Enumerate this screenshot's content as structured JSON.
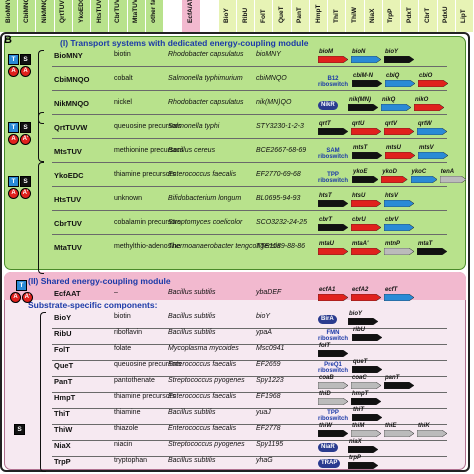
{
  "header_columns": [
    {
      "label": "BioMNY",
      "color": "#b8e28c"
    },
    {
      "label": "CbiMNQO",
      "color": "#b8e28c"
    },
    {
      "label": "NikMNQO",
      "color": "#b8e28c"
    },
    {
      "label": "QrtTUVW",
      "color": "#b8e28c"
    },
    {
      "label": "YkoEDC",
      "color": "#b8e28c"
    },
    {
      "label": "HtsTUV",
      "color": "#b8e28c"
    },
    {
      "label": "CbrTUV",
      "color": "#b8e28c"
    },
    {
      "label": "MtaTUV",
      "color": "#b8e28c"
    },
    {
      "label": "other families",
      "color": "#b8e28c"
    },
    {
      "label": "",
      "color": "#ffffff"
    },
    {
      "label": "EcfA/AT",
      "color": "#f2b9cf"
    },
    {
      "label": "",
      "color": "#ffffff"
    },
    {
      "label": "BioY",
      "color": "#e7f3b5"
    },
    {
      "label": "RibU",
      "color": "#e7f3b5"
    },
    {
      "label": "FolT",
      "color": "#e7f3b5"
    },
    {
      "label": "QueT",
      "color": "#e7f3b5"
    },
    {
      "label": "PanT",
      "color": "#e7f3b5"
    },
    {
      "label": "HmpT",
      "color": "#e7f3b5"
    },
    {
      "label": "ThiT",
      "color": "#e7f3b5"
    },
    {
      "label": "ThiW",
      "color": "#e7f3b5"
    },
    {
      "label": "NiaX",
      "color": "#e7f3b5"
    },
    {
      "label": "TrpP",
      "color": "#e7f3b5"
    },
    {
      "label": "PdxT",
      "color": "#e7f3b5"
    },
    {
      "label": "CbrT",
      "color": "#e7f3b5"
    },
    {
      "label": "PdxU",
      "color": "#e7f3b5"
    },
    {
      "label": "LipT",
      "color": "#e7f3b5"
    }
  ],
  "panel_label": "B",
  "section1_title": "(I) Transport systems with dedicated energy-coupling module",
  "section2_title": "(II) Shared energy-coupling module",
  "substrate_title": "Substrate-specific components:",
  "plus": "+",
  "colors": {
    "A": "#e0211d",
    "T": "#2a8ad6",
    "S": "#111111",
    "green": "#b8e28c",
    "pink": "#f2b9cf"
  },
  "module_letters": {
    "T": "T",
    "S": "S",
    "A": "A",
    "A2": "A'"
  },
  "section1_rows": [
    {
      "name": "BioMNY",
      "substrate": "biotin",
      "organism": "Rhodobacter capsulatus",
      "locus": "bioMNY",
      "genes": [
        {
          "label": "bioM",
          "color": "#e0211d"
        },
        {
          "label": "bioN",
          "color": "#2a8ad6"
        },
        {
          "label": "bioY",
          "color": "#111111"
        }
      ]
    },
    {
      "name": "CbiMNQO",
      "substrate": "cobalt",
      "organism": "Salmonella typhimurium",
      "locus": "cbiMNQO",
      "genes": [
        {
          "label": "cbiM-N",
          "color": "#111111"
        },
        {
          "label": "cbiQ",
          "color": "#2a8ad6"
        },
        {
          "label": "cbiO",
          "color": "#e0211d"
        }
      ],
      "riboswitch": "B12 riboswitch"
    },
    {
      "name": "NikMNQO",
      "substrate": "nickel",
      "organism": "Rhodobacter capsulatus",
      "locus": "nik(MN)QO",
      "genes": [
        {
          "label": "nik(MN)",
          "color": "#111111"
        },
        {
          "label": "nikQ",
          "color": "#2a8ad6"
        },
        {
          "label": "nikO",
          "color": "#e0211d"
        }
      ],
      "regulator": "NikR"
    },
    {
      "name": "QrtTUVW",
      "substrate": "queuosine precursors",
      "organism": "Salmonella typhi",
      "locus": "STY3230-1-2-3",
      "genes": [
        {
          "label": "qrtT",
          "color": "#111111"
        },
        {
          "label": "qrtU",
          "color": "#e0211d"
        },
        {
          "label": "qrtV",
          "color": "#e0211d"
        },
        {
          "label": "qrtW",
          "color": "#2a8ad6"
        }
      ]
    },
    {
      "name": "MtsTUV",
      "substrate": "methionine precursors",
      "organism": "Bacillus cereus",
      "locus": "BCE2667-68-69",
      "genes": [
        {
          "label": "mtsT",
          "color": "#111111"
        },
        {
          "label": "mtsU",
          "color": "#e0211d"
        },
        {
          "label": "mtsV",
          "color": "#2a8ad6"
        }
      ],
      "riboswitch": "SAM riboswitch"
    },
    {
      "name": "YkoEDC",
      "substrate": "thiamine precursors",
      "organism": "Enterococcus faecalis",
      "locus": "EF2770-69-68",
      "genes": [
        {
          "label": "ykoE",
          "color": "#111111"
        },
        {
          "label": "ykoD",
          "color": "#e0211d"
        },
        {
          "label": "ykoC",
          "color": "#2a8ad6"
        },
        {
          "label": "tenA",
          "color": "#bbbbbb"
        }
      ],
      "riboswitch": "TPP riboswitch"
    },
    {
      "name": "HtsTUV",
      "substrate": "unknown",
      "organism": "Bifidobacterium longum",
      "locus": "BL0695-94-93",
      "genes": [
        {
          "label": "htsT",
          "color": "#111111"
        },
        {
          "label": "htsU",
          "color": "#e0211d"
        },
        {
          "label": "htsV",
          "color": "#2a8ad6"
        }
      ]
    },
    {
      "name": "CbrTUV",
      "substrate": "cobalamin precursors",
      "organism": "Streptomyces coelicolor",
      "locus": "SCO3232-24-25",
      "genes": [
        {
          "label": "cbrT",
          "color": "#111111"
        },
        {
          "label": "cbrU",
          "color": "#e0211d"
        },
        {
          "label": "cbrV",
          "color": "#2a8ad6"
        }
      ]
    },
    {
      "name": "MtaTUV",
      "substrate": "methylthio-adenosine",
      "organism": "Thermoanaerobacter tengcongensis",
      "locus": "TTE1589-88-86",
      "genes": [
        {
          "label": "mtaU",
          "color": "#e0211d"
        },
        {
          "label": "mtaA'",
          "color": "#e0211d"
        },
        {
          "label": "mtnP",
          "color": "#bbbbbb"
        },
        {
          "label": "mtaT",
          "color": "#111111"
        }
      ]
    }
  ],
  "ecf_row": {
    "name": "EcfAAT",
    "substrate": "–",
    "organism": "Bacillus subtilis",
    "locus": "ybaDEF",
    "genes": [
      {
        "label": "ecfA1",
        "color": "#e0211d"
      },
      {
        "label": "ecfA2",
        "color": "#e0211d"
      },
      {
        "label": "ecfT",
        "color": "#2a8ad6"
      }
    ]
  },
  "section2_rows": [
    {
      "name": "BioY",
      "substrate": "biotin",
      "organism": "Bacillus subtilis",
      "locus": "bioY",
      "genes": [
        {
          "label": "bioY",
          "color": "#111111"
        }
      ],
      "regulator": "BirA"
    },
    {
      "name": "RibU",
      "substrate": "riboflavin",
      "organism": "Bacillus subtilis",
      "locus": "ypaA",
      "genes": [
        {
          "label": "ribU",
          "color": "#111111"
        }
      ],
      "riboswitch": "FMN riboswitch"
    },
    {
      "name": "FolT",
      "substrate": "folate",
      "organism": "Mycoplasma mycoides",
      "locus": "Msc0941",
      "genes": [
        {
          "label": "folT",
          "color": "#111111"
        }
      ]
    },
    {
      "name": "QueT",
      "substrate": "queuosine precursors",
      "organism": "Enterococcus faecalis",
      "locus": "EF2659",
      "genes": [
        {
          "label": "queT",
          "color": "#111111"
        }
      ],
      "riboswitch": "PreQ1 riboswitch"
    },
    {
      "name": "PanT",
      "substrate": "pantothenate",
      "organism": "Streptococcus pyogenes",
      "locus": "Spy1223",
      "genes": [
        {
          "label": "coaB",
          "color": "#bbbbbb"
        },
        {
          "label": "coaC",
          "color": "#bbbbbb"
        },
        {
          "label": "panT",
          "color": "#111111"
        }
      ]
    },
    {
      "name": "HmpT",
      "substrate": "thiamine precursors",
      "organism": "Enterococcus faecalis",
      "locus": "EF1968",
      "genes": [
        {
          "label": "thiD",
          "color": "#bbbbbb"
        },
        {
          "label": "hmpT",
          "color": "#111111"
        }
      ]
    },
    {
      "name": "ThiT",
      "substrate": "thiamine",
      "organism": "Bacillus subtilis",
      "locus": "yuaJ",
      "genes": [
        {
          "label": "thiT",
          "color": "#111111"
        }
      ],
      "riboswitch": "TPP riboswitch"
    },
    {
      "name": "ThiW",
      "substrate": "thiazole",
      "organism": "Enterococcus faecalis",
      "locus": "EF2778",
      "genes": [
        {
          "label": "thiW",
          "color": "#111111"
        },
        {
          "label": "thiM",
          "color": "#bbbbbb"
        },
        {
          "label": "thiE",
          "color": "#bbbbbb"
        },
        {
          "label": "thiK",
          "color": "#bbbbbb"
        }
      ]
    },
    {
      "name": "NiaX",
      "substrate": "niacin",
      "organism": "Streptococcus pyogenes",
      "locus": "Spy1195",
      "genes": [
        {
          "label": "niaX",
          "color": "#111111"
        }
      ],
      "regulator": "NiaR"
    },
    {
      "name": "TrpP",
      "substrate": "tryptophan",
      "organism": "Bacillus subtilis",
      "locus": "yhaG",
      "genes": [
        {
          "label": "trpP",
          "color": "#111111"
        }
      ],
      "regulator": "TRAP"
    }
  ]
}
